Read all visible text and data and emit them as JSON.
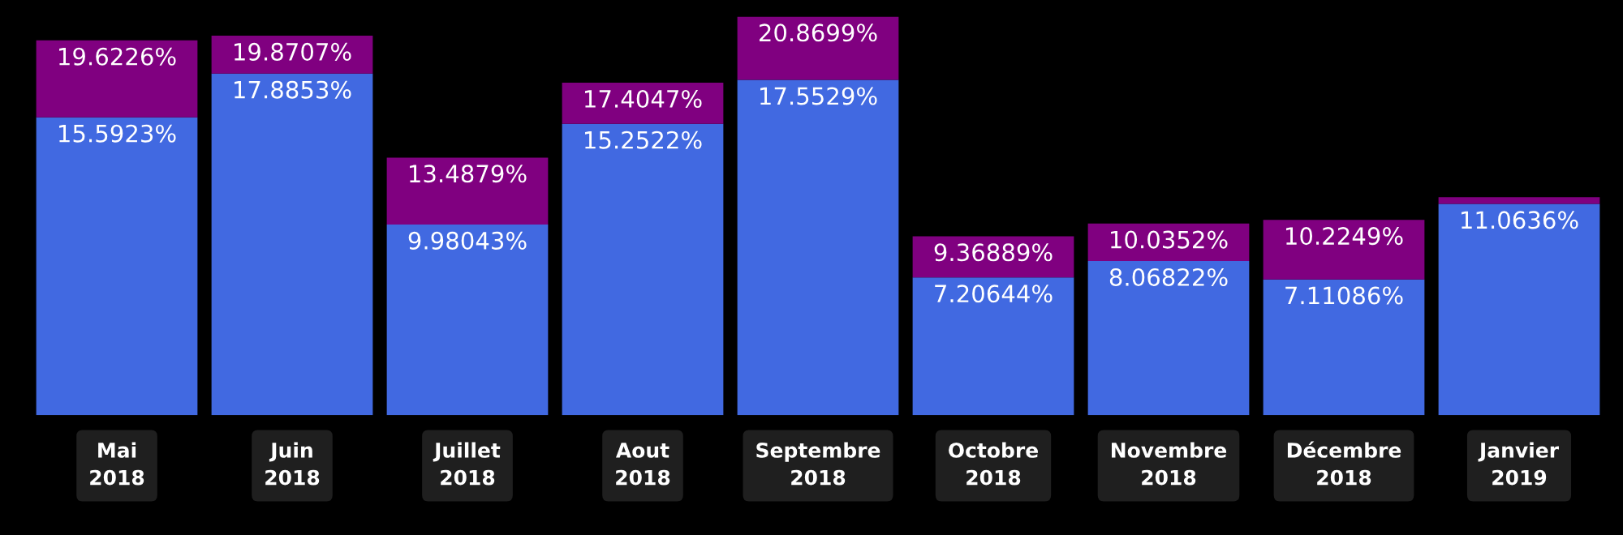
{
  "chart_data": {
    "type": "bar",
    "stacked": true,
    "categories": [
      "Mai\n2018",
      "Juin\n2018",
      "Juillet\n2018",
      "Aout\n2018",
      "Septembre\n2018",
      "Octobre\n2018",
      "Novembre\n2018",
      "Décembre\n2018",
      "Janvier\n2019"
    ],
    "series": [
      {
        "color": "#4169e1",
        "values": [
          15.5923,
          17.8853,
          9.98043,
          15.2522,
          17.5529,
          7.20644,
          8.06822,
          7.11086,
          11.0636
        ],
        "value_labels": [
          "15.5923%",
          "17.8853%",
          "9.98043%",
          "15.2522%",
          "17.5529%",
          "7.20644%",
          "8.06822%",
          "7.11086%",
          "11.0636%"
        ]
      },
      {
        "color": "#800080",
        "values": [
          4.0303,
          1.9854,
          3.50747,
          2.1525,
          3.317,
          2.16245,
          1.96698,
          3.11404,
          0.35
        ]
      }
    ],
    "totals": [
      "19.6226%",
      "19.8707%",
      "13.4879%",
      "17.4047%",
      "20.8699%",
      "9.36889%",
      "10.0352%",
      "10.2249%",
      null
    ],
    "tick_labels": "x",
    "grid": false,
    "legend": false
  }
}
